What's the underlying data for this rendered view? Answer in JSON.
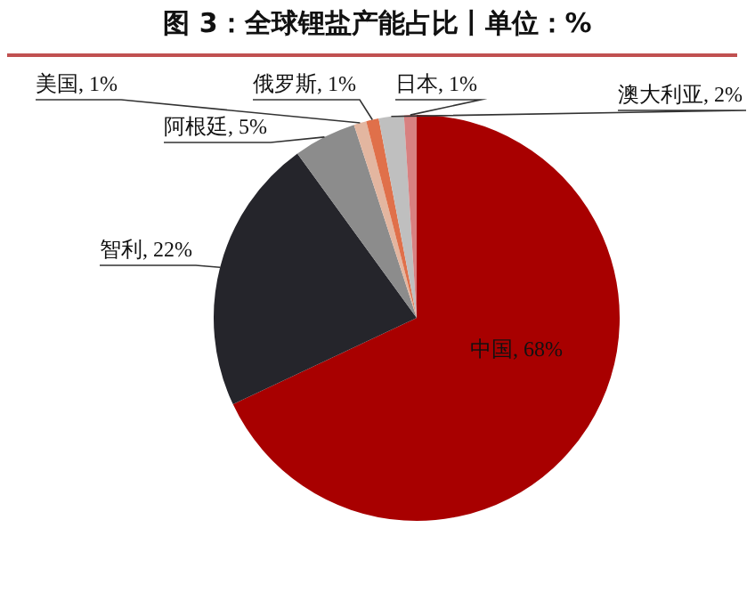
{
  "chart_data": {
    "type": "pie",
    "title": "图 3：全球锂盐产能占比丨单位：%",
    "categories": [
      "中国",
      "智利",
      "阿根廷",
      "美国",
      "俄罗斯",
      "澳大利亚",
      "日本"
    ],
    "values": [
      68,
      22,
      5,
      1,
      1,
      2,
      1
    ],
    "value_labels": [
      "68%",
      "22%",
      "5%",
      "1%",
      "1%",
      "2%",
      "1%"
    ],
    "colors": [
      "#a80000",
      "#25252b",
      "#8c8c8c",
      "#e3b6a0",
      "#e0704a",
      "#bfbfbf",
      "#d88080"
    ],
    "legend": false
  }
}
